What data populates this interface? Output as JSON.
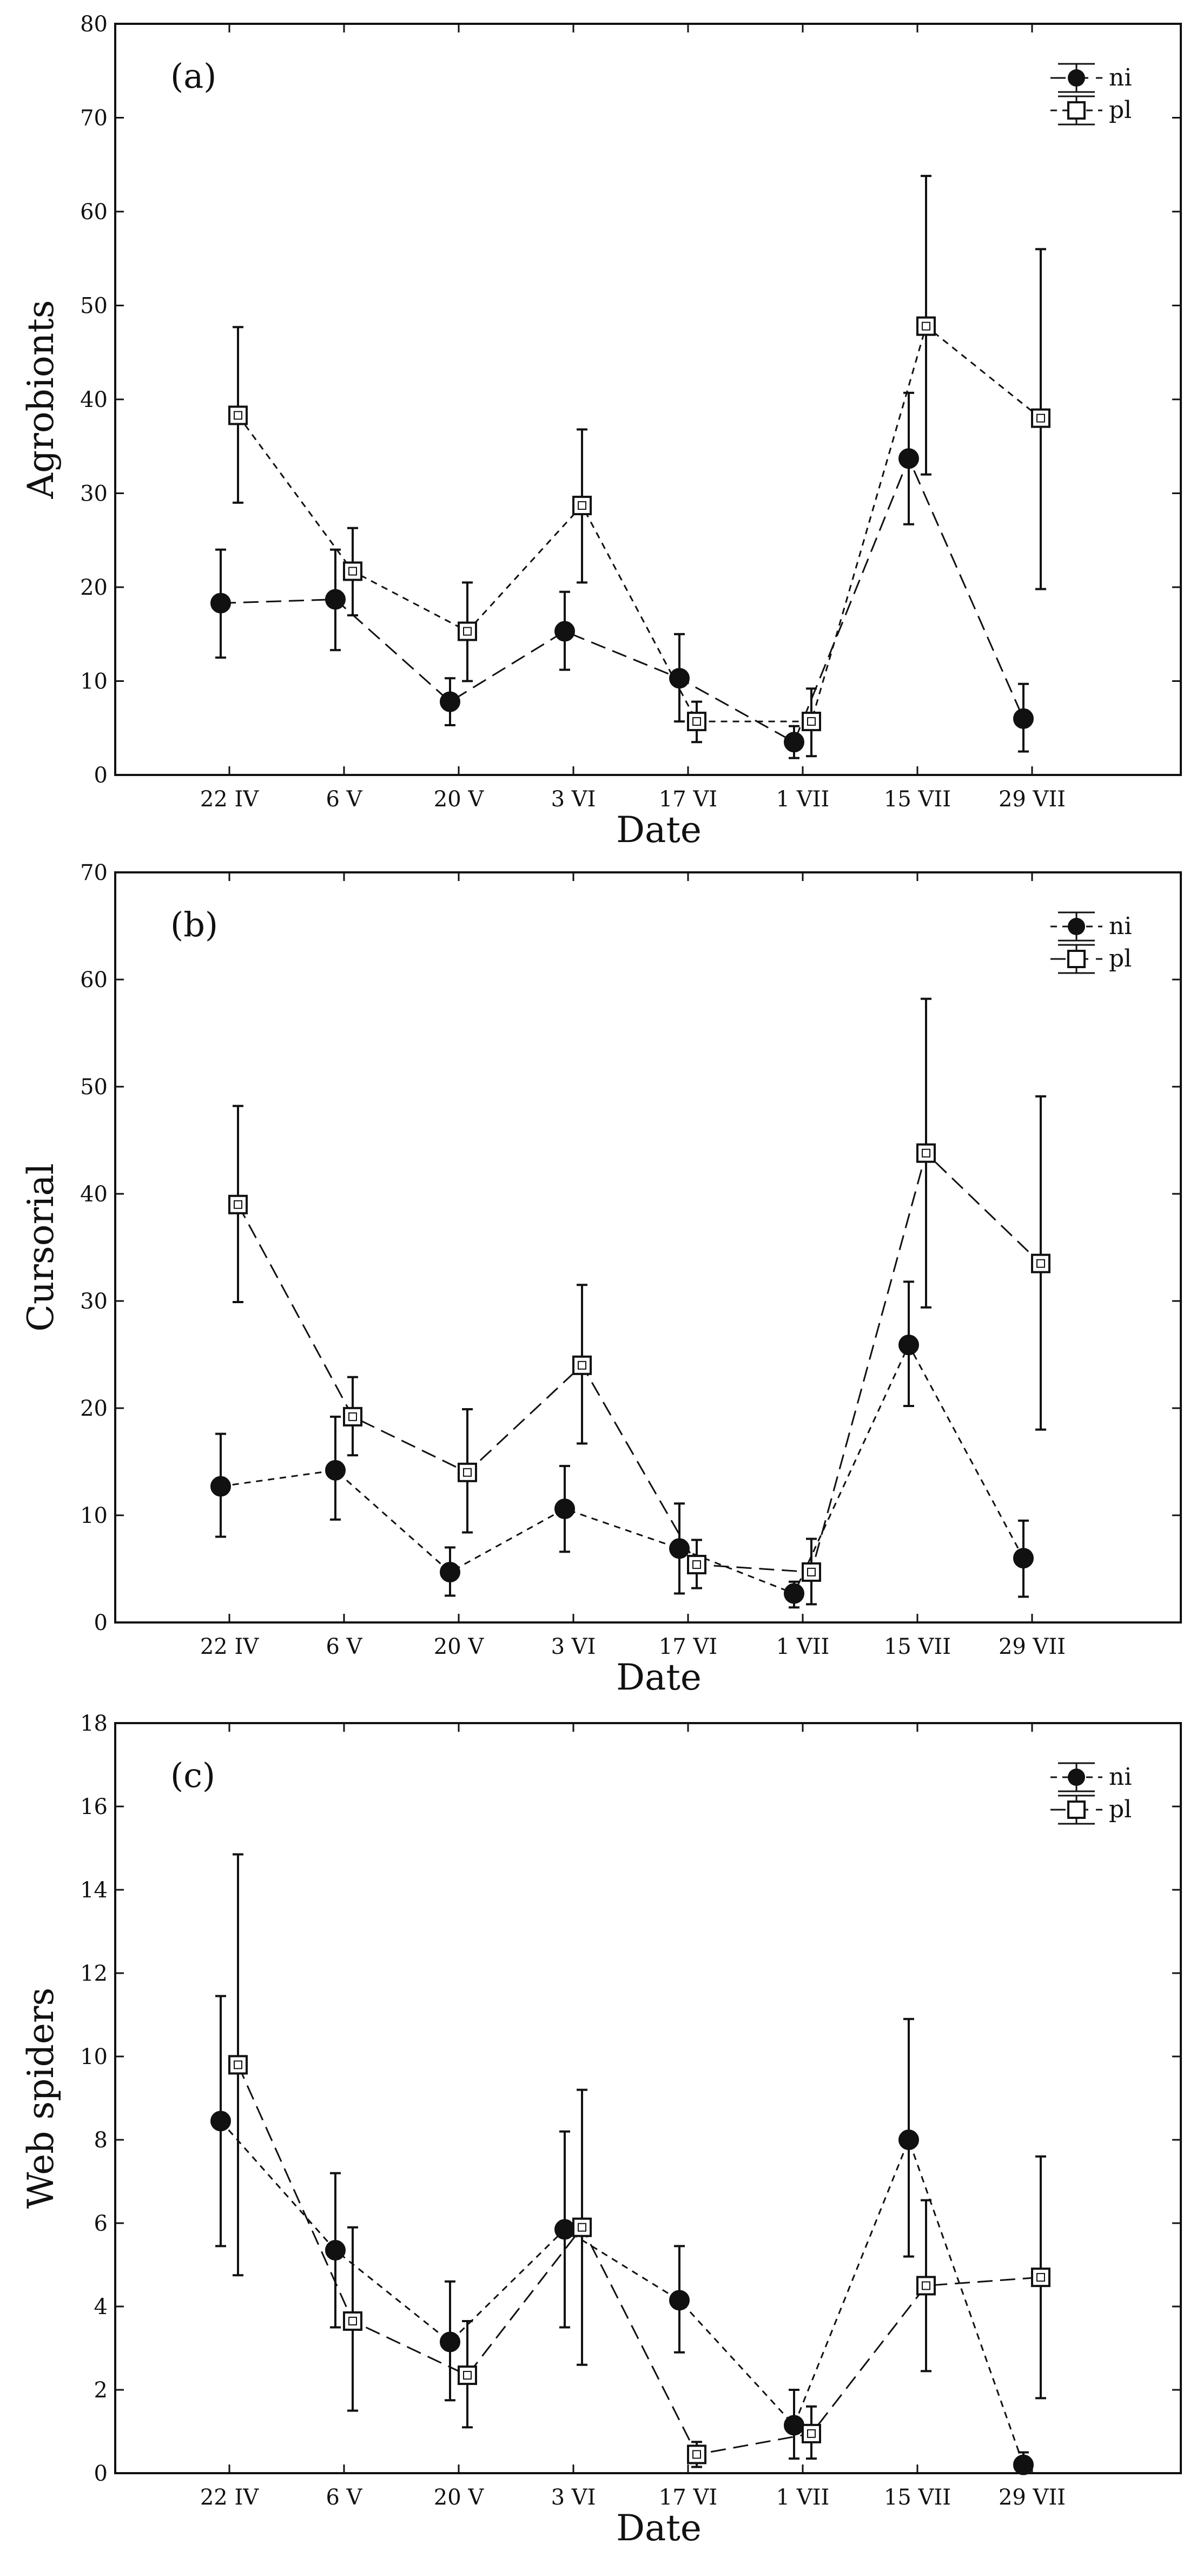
{
  "chart_data": [
    {
      "type": "line",
      "panel_label": "(a)",
      "ylabel": "Agrobionts",
      "xlabel": "Date",
      "ylim": [
        0,
        80
      ],
      "yticks": [
        0,
        10,
        20,
        30,
        40,
        50,
        60,
        70,
        80
      ],
      "categories": [
        "22 IV",
        "6 V",
        "20 V",
        "3 VI",
        "17 VI",
        "1 VII",
        "15 VII",
        "29 VII"
      ],
      "legend": {
        "position": "top-right",
        "entries": [
          "ni",
          "pl"
        ]
      },
      "series": [
        {
          "name": "ni",
          "marker": "filled-circle",
          "dash": "long",
          "values": [
            18.3,
            18.7,
            7.8,
            15.3,
            10.3,
            3.5,
            33.7,
            6.0
          ],
          "err_low": [
            12.5,
            13.3,
            5.3,
            11.2,
            5.7,
            1.8,
            26.7,
            2.5
          ],
          "err_high": [
            24.0,
            24.0,
            10.3,
            19.5,
            15.0,
            5.2,
            40.7,
            9.7
          ]
        },
        {
          "name": "pl",
          "marker": "open-square",
          "dash": "short",
          "values": [
            38.3,
            21.7,
            15.3,
            28.7,
            5.7,
            5.7,
            47.8,
            38.0
          ],
          "err_low": [
            29.0,
            17.0,
            10.0,
            20.5,
            3.5,
            2.0,
            32.0,
            19.8
          ],
          "err_high": [
            47.7,
            26.3,
            20.5,
            36.8,
            7.8,
            9.2,
            63.8,
            56.0
          ]
        }
      ]
    },
    {
      "type": "line",
      "panel_label": "(b)",
      "ylabel": "Cursorial",
      "xlabel": "Date",
      "ylim": [
        0,
        70
      ],
      "yticks": [
        0,
        10,
        20,
        30,
        40,
        50,
        60,
        70
      ],
      "categories": [
        "22 IV",
        "6 V",
        "20 V",
        "3 VI",
        "17 VI",
        "1 VII",
        "15 VII",
        "29 VII"
      ],
      "legend": {
        "position": "top-right",
        "entries": [
          "ni",
          "pl"
        ]
      },
      "series": [
        {
          "name": "ni",
          "marker": "filled-circle",
          "dash": "short",
          "values": [
            12.7,
            14.2,
            4.7,
            10.6,
            6.9,
            2.7,
            25.9,
            6.0
          ],
          "err_low": [
            8.0,
            9.6,
            2.5,
            6.6,
            2.7,
            1.4,
            20.2,
            2.4
          ],
          "err_high": [
            17.6,
            19.2,
            7.0,
            14.6,
            11.1,
            3.8,
            31.8,
            9.5
          ]
        },
        {
          "name": "pl",
          "marker": "open-square",
          "dash": "long",
          "values": [
            39.0,
            19.2,
            14.0,
            24.0,
            5.4,
            4.7,
            43.8,
            33.5
          ],
          "err_low": [
            29.9,
            15.6,
            8.4,
            16.7,
            3.2,
            1.7,
            29.4,
            18.0
          ],
          "err_high": [
            48.2,
            22.9,
            19.9,
            31.5,
            7.7,
            7.8,
            58.2,
            49.1
          ]
        }
      ]
    },
    {
      "type": "line",
      "panel_label": "(c)",
      "ylabel": "Web spiders",
      "xlabel": "Date",
      "ylim": [
        0,
        18
      ],
      "yticks": [
        0,
        2,
        4,
        6,
        8,
        10,
        12,
        14,
        16,
        18
      ],
      "categories": [
        "22 IV",
        "6 V",
        "20 V",
        "3 VI",
        "17 VI",
        "1 VII",
        "15 VII",
        "29 VII"
      ],
      "legend": {
        "position": "top-right",
        "entries": [
          "ni",
          "pl"
        ]
      },
      "series": [
        {
          "name": "ni",
          "marker": "filled-circle",
          "dash": "short",
          "values": [
            8.45,
            5.35,
            3.15,
            5.85,
            4.15,
            1.15,
            8.0,
            0.2
          ],
          "err_low": [
            5.45,
            3.5,
            1.75,
            3.5,
            2.9,
            0.35,
            5.2,
            0.0
          ],
          "err_high": [
            11.45,
            7.2,
            4.6,
            8.2,
            5.45,
            2.0,
            10.9,
            0.5
          ]
        },
        {
          "name": "pl",
          "marker": "open-square",
          "dash": "long",
          "values": [
            9.8,
            3.65,
            2.35,
            5.9,
            0.45,
            0.95,
            4.5,
            4.7
          ],
          "err_low": [
            4.75,
            1.5,
            1.1,
            2.6,
            0.15,
            0.35,
            2.45,
            1.8
          ],
          "err_high": [
            14.85,
            5.9,
            3.65,
            9.2,
            0.75,
            1.6,
            6.55,
            7.6
          ]
        }
      ]
    }
  ]
}
